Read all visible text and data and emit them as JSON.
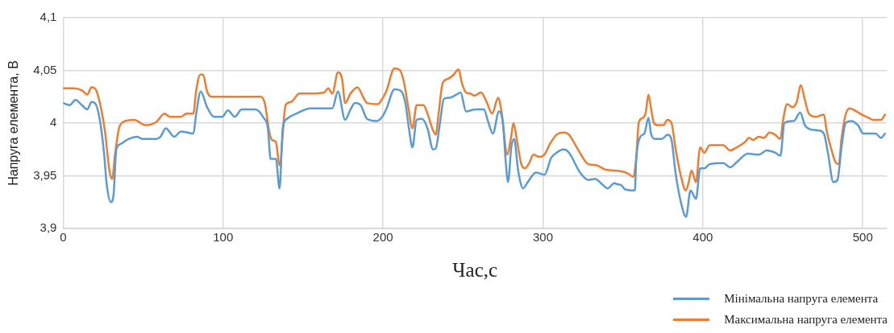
{
  "chart_data": {
    "type": "line",
    "xlabel": "Час,с",
    "ylabel": "Напруга елемента, В",
    "xlim": [
      0,
      515
    ],
    "xticks": [
      0,
      100,
      200,
      300,
      400,
      500
    ],
    "ylim": [
      3.9,
      4.1
    ],
    "yticks": [
      {
        "value": 3.9,
        "label": "3,9"
      },
      {
        "value": 3.95,
        "label": "3,95"
      },
      {
        "value": 4.0,
        "label": "4"
      },
      {
        "value": 4.05,
        "label": "4,05"
      },
      {
        "value": 4.1,
        "label": "4,1"
      }
    ],
    "grid": true,
    "legend": "bottom right",
    "marker": "none",
    "line_style": "solid",
    "series": [
      {
        "name": "Мінімальна напруга елемента",
        "color": "#5b9bd5",
        "x": [
          0,
          4,
          7.7,
          11.7,
          15.1,
          17.7,
          20.3,
          22.9,
          25.5,
          27.2,
          29.8,
          31.5,
          33.2,
          35.8,
          41,
          46.1,
          49.6,
          58.2,
          60.8,
          64.2,
          69.4,
          73.7,
          81.4,
          83.1,
          86,
          90,
          94.3,
          99.5,
          103,
          107.3,
          111.6,
          120.2,
          125.3,
          128,
          129.7,
          133,
          135.3,
          137.3,
          139.9,
          145.9,
          154.6,
          168.3,
          171.8,
          176.3,
          179.7,
          182.5,
          186,
          190,
          196,
          199.5,
          202,
          207.2,
          211.5,
          214.1,
          216.2,
          218.4,
          221,
          224.4,
          227.8,
          231.3,
          233,
          235.6,
          238.1,
          241.6,
          245.9,
          248.5,
          251.9,
          257.9,
          263.1,
          265.6,
          268.7,
          272.5,
          275.1,
          276.8,
          278.2,
          280.2,
          282,
          284.5,
          287.6,
          290.5,
          295.7,
          300.9,
          305.2,
          308.6,
          312.9,
          316.3,
          323.2,
          328.4,
          332.6,
          337,
          340.4,
          344.7,
          346.4,
          349,
          351.5,
          357.5,
          358.3,
          360.9,
          363.4,
          366,
          367.7,
          370.2,
          374.5,
          377.9,
          380.4,
          383,
          386.4,
          389.5,
          392.3,
          395.7,
          398.3,
          400.9,
          404.3,
          412.8,
          417,
          421.3,
          428.1,
          434.9,
          440,
          445.1,
          448.5,
          451,
          456.9,
          460.9,
          463.8,
          467.2,
          472.3,
          475.7,
          478.2,
          481.6,
          484.2,
          486.7,
          489.3,
          492.7,
          497,
          500.3,
          508,
          511.4,
          513.9
        ],
        "values": [
          4.019,
          4.017,
          4.022,
          4.017,
          4.013,
          4.02,
          4.018,
          4.003,
          3.972,
          3.942,
          3.925,
          3.932,
          3.975,
          3.98,
          3.985,
          3.987,
          3.985,
          3.985,
          3.987,
          3.995,
          3.987,
          3.992,
          3.99,
          4.008,
          4.03,
          4.015,
          4.006,
          4.006,
          4.012,
          4.006,
          4.013,
          4.013,
          4.005,
          3.995,
          3.966,
          3.966,
          3.938,
          3.995,
          4.004,
          4.009,
          4.014,
          4.014,
          4.03,
          4.003,
          4.013,
          4.019,
          4.017,
          4.004,
          4.002,
          4.006,
          4.013,
          4.032,
          4.03,
          4.018,
          3.995,
          3.977,
          4.003,
          4.004,
          3.995,
          3.975,
          3.976,
          4.0,
          4.023,
          4.024,
          4.027,
          4.029,
          4.011,
          4.013,
          4.013,
          4.002,
          3.99,
          4.011,
          3.998,
          3.962,
          3.944,
          3.977,
          3.985,
          3.955,
          3.938,
          3.944,
          3.953,
          3.951,
          3.967,
          3.972,
          3.975,
          3.972,
          3.953,
          3.946,
          3.947,
          3.942,
          3.938,
          3.943,
          3.942,
          3.941,
          3.937,
          3.936,
          3.964,
          3.987,
          3.99,
          4.005,
          3.989,
          3.985,
          3.985,
          3.989,
          3.984,
          3.952,
          3.924,
          3.911,
          3.936,
          3.928,
          3.957,
          3.957,
          3.961,
          3.962,
          3.958,
          3.963,
          3.971,
          3.97,
          3.974,
          3.972,
          3.969,
          4.0,
          4.002,
          4.01,
          3.998,
          3.994,
          3.993,
          3.99,
          3.972,
          3.944,
          3.946,
          3.977,
          4.0,
          4.002,
          3.998,
          3.99,
          3.99,
          3.986,
          3.99
        ]
      },
      {
        "name": "Максимальна напруга елемента",
        "color": "#ed7d31",
        "x": [
          0,
          6.5,
          11.7,
          15.1,
          17.7,
          20.3,
          23.8,
          26.3,
          28.9,
          30.6,
          32.4,
          34.9,
          37.5,
          44.4,
          51.3,
          58.2,
          63.3,
          66.8,
          73.7,
          77.1,
          81.4,
          83.1,
          85.7,
          87.4,
          90,
          92.6,
          99.5,
          123.6,
          126.2,
          128.7,
          130.5,
          133,
          135.3,
          139.1,
          142.5,
          147.7,
          154.6,
          163.2,
          165.7,
          168.3,
          171.8,
          174.4,
          176.3,
          179.7,
          184,
          187.5,
          190,
          196.9,
          199.5,
          202,
          207.2,
          210.7,
          213.2,
          215.8,
          218.4,
          221,
          225.3,
          227.8,
          231.3,
          233,
          234.7,
          237.3,
          240.7,
          244.2,
          247.3,
          249.3,
          251.9,
          254.5,
          257,
          261.3,
          264.8,
          268.2,
          272,
          274.2,
          277.7,
          279.9,
          281.6,
          283.7,
          286.3,
          288.8,
          291.4,
          294,
          297.4,
          300.9,
          304.3,
          308.6,
          312.9,
          316.3,
          321.5,
          328.4,
          333.5,
          338.7,
          344.7,
          349.8,
          353.2,
          356.6,
          358.3,
          360,
          362.6,
          364.3,
          366,
          367.7,
          369.4,
          371.9,
          375.3,
          377.9,
          380.4,
          383,
          386.4,
          389.3,
          391.2,
          392.9,
          395.7,
          398.3,
          400.9,
          404.3,
          412.8,
          417,
          421.3,
          426.4,
          429,
          431.5,
          434.9,
          438.3,
          441.7,
          445.1,
          448.5,
          450.2,
          452.7,
          456.1,
          458.7,
          461.2,
          463.8,
          466.3,
          470.6,
          475.7,
          477.4,
          480,
          483.3,
          485,
          486.7,
          489.3,
          491.8,
          496.1,
          499.5,
          503.7,
          506.3,
          511.4,
          513.9
        ],
        "values": [
          4.033,
          4.033,
          4.031,
          4.027,
          4.034,
          4.032,
          4.013,
          3.99,
          3.955,
          3.947,
          3.97,
          3.995,
          4.001,
          4.003,
          3.998,
          4.001,
          4.009,
          4.006,
          4.006,
          4.009,
          4.009,
          4.03,
          4.046,
          4.046,
          4.03,
          4.025,
          4.025,
          4.025,
          4.018,
          3.993,
          3.984,
          3.982,
          3.96,
          4.017,
          4.02,
          4.028,
          4.028,
          4.029,
          4.033,
          4.028,
          4.048,
          4.042,
          4.019,
          4.028,
          4.034,
          4.025,
          4.019,
          4.018,
          4.023,
          4.03,
          4.052,
          4.05,
          4.038,
          4.015,
          3.995,
          4.017,
          4.017,
          4.009,
          3.993,
          3.989,
          4.008,
          4.038,
          4.042,
          4.046,
          4.051,
          4.038,
          4.029,
          4.028,
          4.026,
          4.029,
          4.02,
          4.009,
          4.024,
          4.01,
          3.97,
          3.985,
          4.0,
          3.984,
          3.962,
          3.957,
          3.962,
          3.97,
          3.968,
          3.97,
          3.98,
          3.989,
          3.991,
          3.989,
          3.976,
          3.961,
          3.96,
          3.956,
          3.955,
          3.954,
          3.952,
          3.949,
          3.967,
          4.001,
          4.005,
          4.01,
          4.027,
          4.013,
          4.0,
          3.998,
          3.998,
          4.003,
          4.0,
          3.975,
          3.949,
          3.936,
          3.944,
          3.955,
          3.944,
          3.977,
          3.972,
          3.979,
          3.979,
          3.974,
          3.977,
          3.982,
          3.986,
          3.984,
          3.987,
          3.986,
          3.991,
          3.989,
          3.985,
          4.003,
          4.018,
          4.015,
          4.02,
          4.036,
          4.022,
          4.009,
          4.006,
          4.008,
          3.993,
          3.977,
          3.962,
          3.961,
          3.985,
          4.008,
          4.014,
          4.011,
          4.008,
          4.005,
          4.003,
          4.003,
          4.008
        ]
      }
    ]
  }
}
